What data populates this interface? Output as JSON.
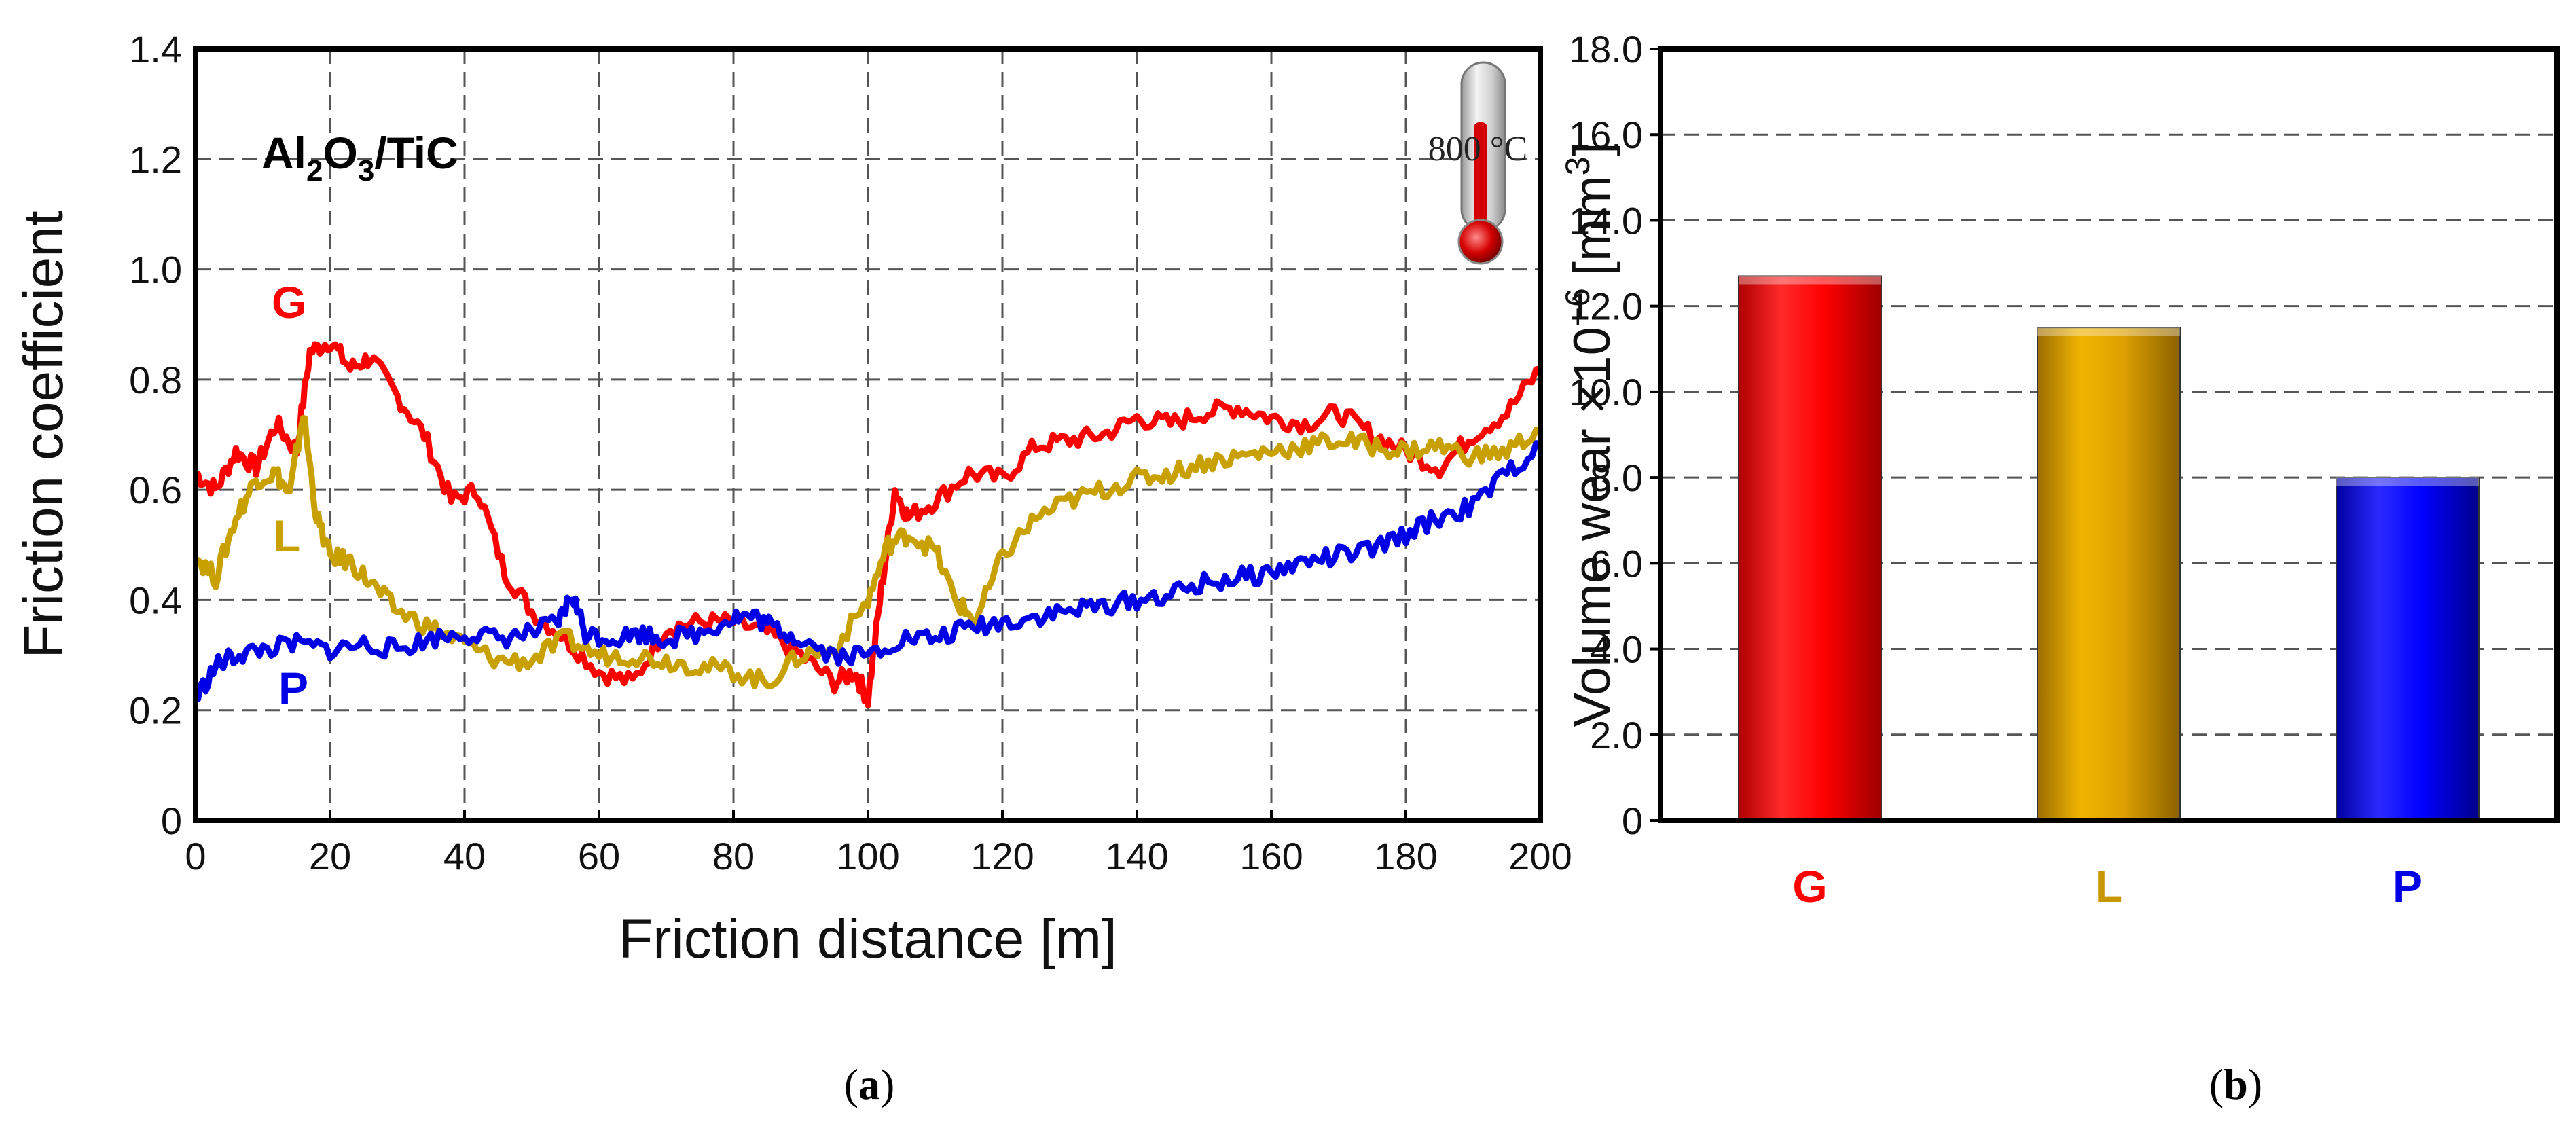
{
  "chart_data": [
    {
      "type": "line",
      "panel_label": "(a)",
      "panel_letter": "a",
      "annotation": {
        "material_prefix": "Al",
        "sub1": "2",
        "material_mid": "O",
        "sub2": "3",
        "material_suffix": "/TiC",
        "temperature": "800 °C"
      },
      "xlabel": "Friction distance [m]",
      "ylabel": "Friction coefficient",
      "xlim": [
        0,
        200
      ],
      "ylim": [
        0,
        1.4
      ],
      "xticks": [
        "0",
        "20",
        "40",
        "60",
        "80",
        "100",
        "120",
        "140",
        "160",
        "180",
        "200"
      ],
      "yticks": [
        "0",
        "0.2",
        "0.4",
        "0.6",
        "0.8",
        "1.0",
        "1.2",
        "1.4"
      ],
      "series": [
        {
          "name": "G",
          "color": "#ff0000",
          "x": [
            0,
            3,
            6,
            9,
            12,
            15,
            17,
            20,
            23,
            26,
            30,
            34,
            38,
            42,
            46,
            50,
            55,
            60,
            65,
            70,
            75,
            80,
            85,
            90,
            95,
            98,
            100,
            102,
            104,
            106,
            110,
            115,
            120,
            125,
            130,
            135,
            140,
            145,
            150,
            155,
            160,
            165,
            170,
            175,
            180,
            185,
            190,
            195,
            200
          ],
          "y": [
            0.63,
            0.6,
            0.67,
            0.64,
            0.72,
            0.67,
            0.85,
            0.87,
            0.82,
            0.84,
            0.77,
            0.7,
            0.58,
            0.6,
            0.45,
            0.38,
            0.33,
            0.27,
            0.25,
            0.35,
            0.36,
            0.36,
            0.34,
            0.3,
            0.25,
            0.27,
            0.22,
            0.42,
            0.6,
            0.55,
            0.58,
            0.63,
            0.62,
            0.68,
            0.69,
            0.7,
            0.73,
            0.72,
            0.74,
            0.75,
            0.73,
            0.72,
            0.74,
            0.7,
            0.67,
            0.64,
            0.7,
            0.74,
            0.82
          ]
        },
        {
          "name": "L",
          "color": "#c8a000",
          "x": [
            0,
            3,
            6,
            9,
            12,
            14,
            16,
            18,
            20,
            23,
            26,
            30,
            35,
            40,
            45,
            50,
            55,
            60,
            65,
            70,
            75,
            80,
            85,
            90,
            95,
            100,
            103,
            106,
            110,
            113,
            116,
            120,
            125,
            130,
            135,
            140,
            145,
            150,
            155,
            160,
            165,
            170,
            175,
            180,
            185,
            190,
            195,
            200
          ],
          "y": [
            0.48,
            0.44,
            0.55,
            0.62,
            0.63,
            0.59,
            0.74,
            0.55,
            0.48,
            0.47,
            0.43,
            0.38,
            0.35,
            0.32,
            0.29,
            0.29,
            0.33,
            0.3,
            0.3,
            0.29,
            0.28,
            0.27,
            0.25,
            0.3,
            0.31,
            0.4,
            0.5,
            0.52,
            0.49,
            0.4,
            0.36,
            0.48,
            0.55,
            0.58,
            0.6,
            0.62,
            0.63,
            0.65,
            0.66,
            0.67,
            0.68,
            0.69,
            0.68,
            0.67,
            0.68,
            0.66,
            0.67,
            0.71
          ]
        },
        {
          "name": "P",
          "color": "#0000e6",
          "x": [
            0,
            3,
            6,
            10,
            15,
            20,
            25,
            30,
            35,
            40,
            45,
            50,
            54,
            56,
            58,
            62,
            66,
            70,
            75,
            80,
            83,
            86,
            90,
            95,
            100,
            105,
            110,
            115,
            120,
            125,
            130,
            135,
            140,
            145,
            150,
            155,
            160,
            165,
            170,
            175,
            180,
            185,
            190,
            195,
            200
          ],
          "y": [
            0.22,
            0.28,
            0.3,
            0.31,
            0.32,
            0.31,
            0.32,
            0.31,
            0.33,
            0.34,
            0.33,
            0.34,
            0.36,
            0.41,
            0.34,
            0.33,
            0.34,
            0.33,
            0.34,
            0.37,
            0.37,
            0.35,
            0.33,
            0.3,
            0.3,
            0.33,
            0.33,
            0.35,
            0.36,
            0.37,
            0.38,
            0.39,
            0.4,
            0.41,
            0.43,
            0.44,
            0.45,
            0.47,
            0.48,
            0.49,
            0.52,
            0.55,
            0.57,
            0.63,
            0.68
          ]
        }
      ],
      "series_labels": [
        "G",
        "L",
        "P"
      ]
    },
    {
      "type": "bar",
      "panel_label": "(b)",
      "panel_letter": "b",
      "categories": [
        "G",
        "L",
        "P"
      ],
      "values": [
        12.7,
        11.5,
        8.0
      ],
      "colors": [
        "#ff0000",
        "#dda000",
        "#0000ff"
      ],
      "category_label_colors": [
        "#ff0000",
        "#c89600",
        "#0000e6"
      ],
      "ylabel_main": "Volume wear ×10",
      "ylabel_exp": "−6",
      "ylabel_unit_pre": "[mm",
      "ylabel_unit_exp": "3",
      "ylabel_unit_post": "]",
      "ylim": [
        0,
        18
      ],
      "yticks": [
        "0",
        "2.0",
        "4.0",
        "6.0",
        "8.0",
        "10.0",
        "12.0",
        "14.0",
        "16.0",
        "18.0"
      ]
    }
  ]
}
